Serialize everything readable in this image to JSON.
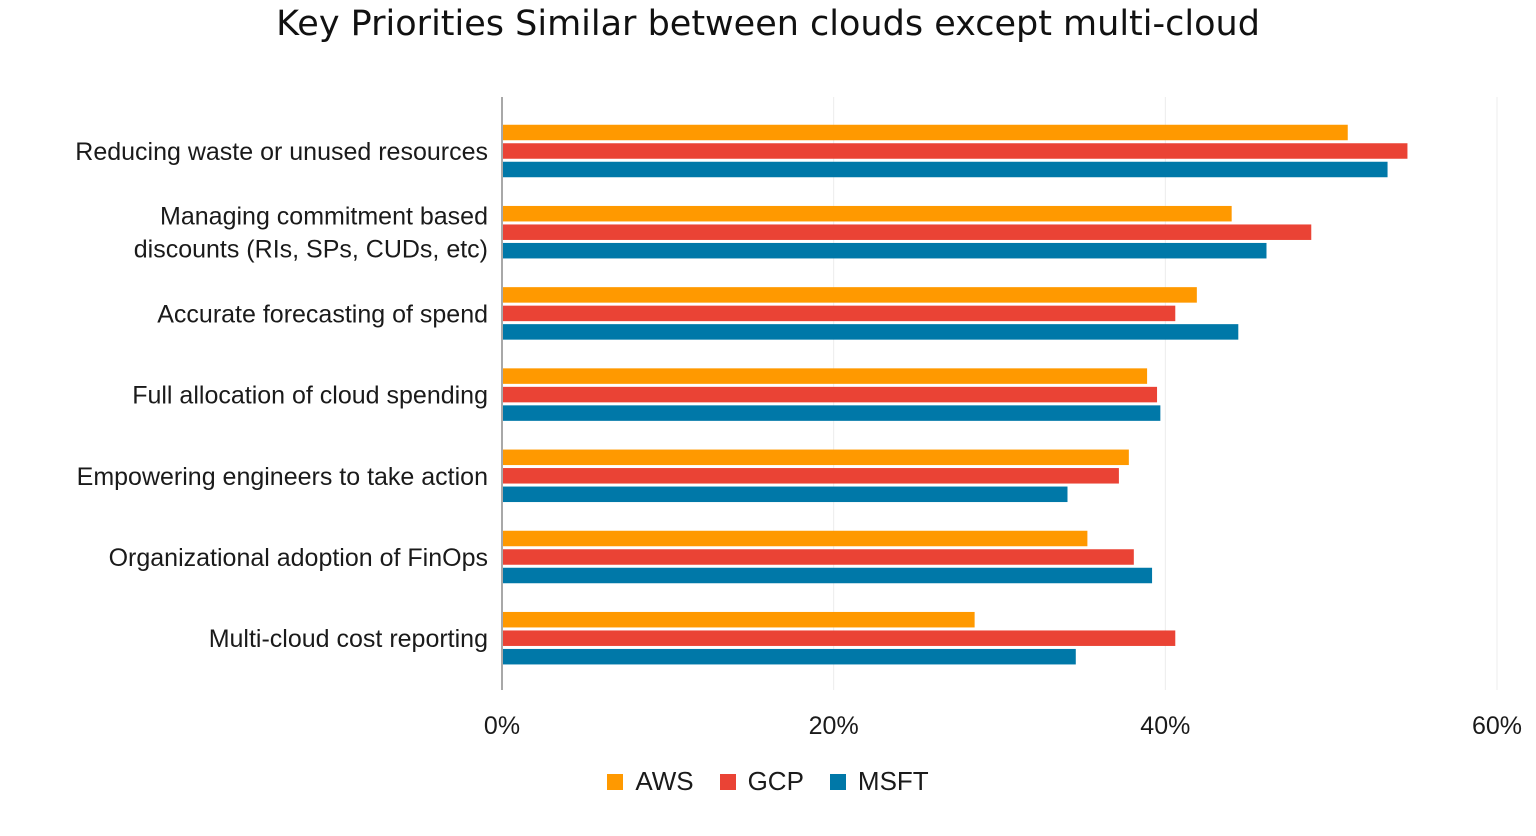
{
  "chart_data": {
    "type": "bar",
    "orientation": "horizontal",
    "title": "Key Priorities Similar between clouds except multi-cloud",
    "categories": [
      [
        "Reducing waste or unused resources"
      ],
      [
        "Managing commitment based",
        "discounts (RIs, SPs, CUDs, etc)"
      ],
      [
        "Accurate forecasting of spend"
      ],
      [
        "Full allocation of cloud spending"
      ],
      [
        "Empowering engineers to take action"
      ],
      [
        "Organizational adoption of FinOps"
      ],
      [
        "Multi-cloud cost reporting"
      ]
    ],
    "series": [
      {
        "name": "AWS",
        "color": "#FF9900",
        "values": [
          51.0,
          44.0,
          41.9,
          38.9,
          37.8,
          35.3,
          28.5
        ]
      },
      {
        "name": "GCP",
        "color": "#EA4335",
        "values": [
          54.6,
          48.8,
          40.6,
          39.5,
          37.2,
          38.1,
          40.6
        ]
      },
      {
        "name": "MSFT",
        "color": "#0078A8",
        "values": [
          53.4,
          46.1,
          44.4,
          39.7,
          34.1,
          39.2,
          34.6
        ]
      }
    ],
    "xlim": [
      0,
      60
    ],
    "xticks": [
      "0%",
      "20%",
      "40%",
      "60%"
    ],
    "xtick_values": [
      0,
      20,
      40,
      60
    ],
    "grid": true,
    "legend_position": "bottom"
  }
}
